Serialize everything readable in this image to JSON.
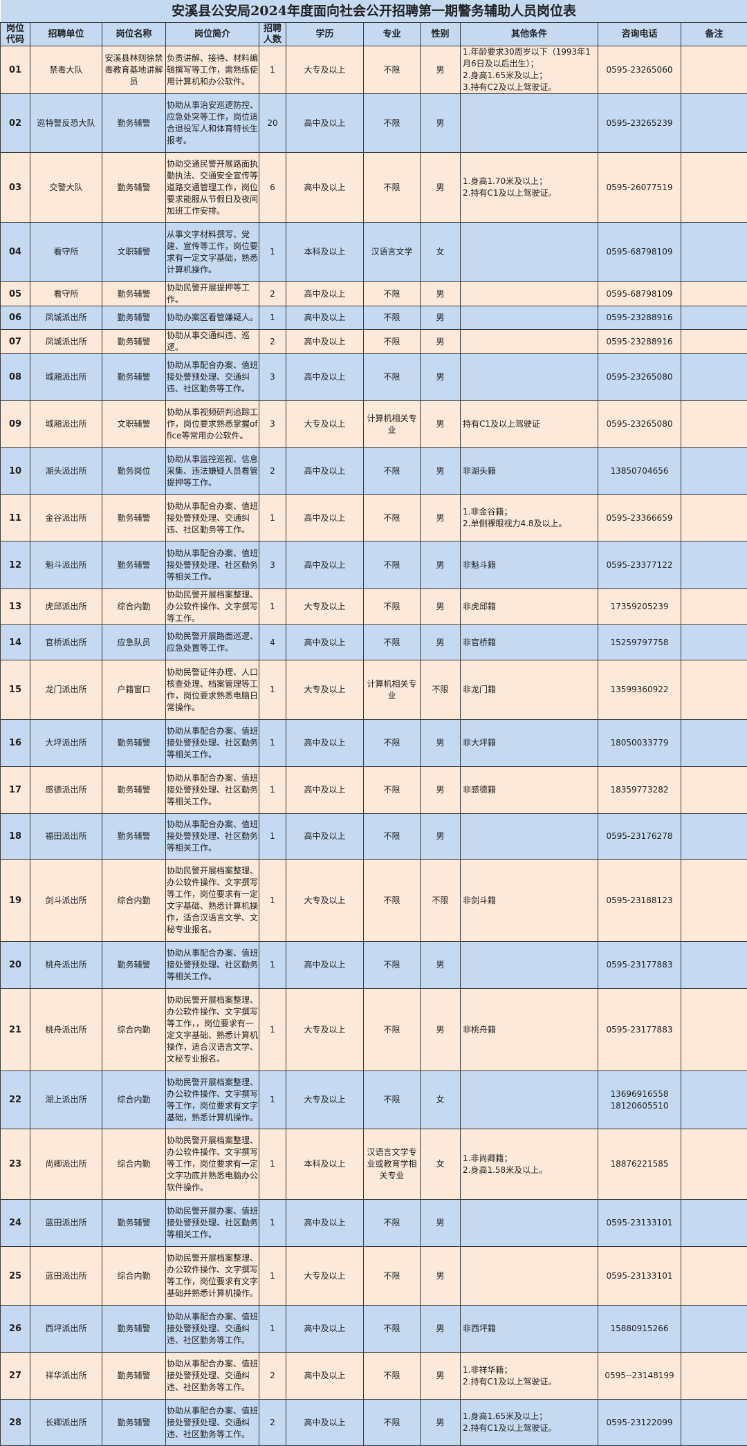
{
  "title": "安溪县公安局2024年度面向社会公开招聘第一期警务辅助人员岗位表",
  "headers": [
    "岗位代码",
    "招聘单位",
    "岗位名称",
    "岗位简介",
    "招聘人数",
    "学历",
    "专业",
    "性别",
    "其他条件",
    "咨询电话",
    "备注"
  ],
  "colors": {
    "header_bg": "#c5d9f1",
    "row_odd": "#fde9d9",
    "row_even": "#c5d9f1"
  },
  "rows": [
    {
      "code": "01",
      "unit": "禁毒大队",
      "post": "安溪县林则徐禁毒教育基地讲解员",
      "intro": "负责讲解、接待、材料编辑撰写等工作，需熟练使用计算机和办公软件。",
      "count": "1",
      "edu": "大专及以上",
      "major": "不限",
      "gender": "男",
      "other": "1.年龄要求30周岁以下（1993年1月6日及以后出生）；\n2.身高1.65米及以上；\n3.持有C2及以上驾驶证。",
      "phone": "0595-23265060",
      "note": ""
    },
    {
      "code": "02",
      "unit": "巡特警反恐大队",
      "post": "勤务辅警",
      "intro": "协助从事治安巡逻防控、应急处突等工作，岗位适合退役军人和体育特长生报考。",
      "count": "20",
      "edu": "高中及以上",
      "major": "不限",
      "gender": "男",
      "other": "",
      "phone": "0595-23265239",
      "note": ""
    },
    {
      "code": "03",
      "unit": "交警大队",
      "post": "勤务辅警",
      "intro": "协助交通民警开展路面执勤执法、交通安全宣传等道路交通管理工作，岗位要求能服从节假日及夜间加班工作安排。",
      "count": "6",
      "edu": "高中及以上",
      "major": "不限",
      "gender": "男",
      "other": "1.身高1.70米及以上；\n2.持有C1及以上驾驶证。",
      "phone": "0595-26077519",
      "note": ""
    },
    {
      "code": "04",
      "unit": "看守所",
      "post": "文职辅警",
      "intro": "从事文字材料撰写、党建、宣传等工作，岗位要求有一定文字基础，熟悉计算机操作。",
      "count": "1",
      "edu": "本科及以上",
      "major": "汉语言文学",
      "gender": "女",
      "other": "",
      "phone": "0595-68798109",
      "note": ""
    },
    {
      "code": "05",
      "unit": "看守所",
      "post": "勤务辅警",
      "intro": "协助民警开展提押等工作。",
      "count": "2",
      "edu": "高中及以上",
      "major": "不限",
      "gender": "男",
      "other": "",
      "phone": "0595-68798109",
      "note": ""
    },
    {
      "code": "06",
      "unit": "凤城派出所",
      "post": "勤务辅警",
      "intro": "协助办案区看管嫌疑人。",
      "count": "1",
      "edu": "高中及以上",
      "major": "不限",
      "gender": "男",
      "other": "",
      "phone": "0595-23288916",
      "note": ""
    },
    {
      "code": "07",
      "unit": "凤城派出所",
      "post": "勤务辅警",
      "intro": "协助从事交通纠违、巡逻。",
      "count": "2",
      "edu": "高中及以上",
      "major": "不限",
      "gender": "男",
      "other": "",
      "phone": "0595-23288916",
      "note": ""
    },
    {
      "code": "08",
      "unit": "城厢派出所",
      "post": "勤务辅警",
      "intro": "协助从事配合办案、值班接处警预处理、交通纠违、社区勤务等工作。",
      "count": "3",
      "edu": "高中及以上",
      "major": "不限",
      "gender": "男",
      "other": "",
      "phone": "0595-23265080",
      "note": ""
    },
    {
      "code": "09",
      "unit": "城厢派出所",
      "post": "文职辅警",
      "intro": "协助从事视频研判追踪工作，岗位要求熟悉掌握office等常用办公软件。",
      "count": "3",
      "edu": "大专及以上",
      "major": "计算机相关专业",
      "gender": "男",
      "other": "持有C1及以上驾驶证",
      "phone": "0595-23265080",
      "note": ""
    },
    {
      "code": "10",
      "unit": "湖头派出所",
      "post": "勤务岗位",
      "intro": "协助从事监控巡视、信息采集、违法嫌疑人员看管提押等工作。",
      "count": "2",
      "edu": "高中及以上",
      "major": "不限",
      "gender": "男",
      "other": "非湖头籍",
      "phone": "13850704656",
      "note": ""
    },
    {
      "code": "11",
      "unit": "金谷派出所",
      "post": "勤务辅警",
      "intro": "协助从事配合办案、值班接处警预处理、交通纠违、社区勤务等工作。",
      "count": "1",
      "edu": "高中及以上",
      "major": "不限",
      "gender": "男",
      "other": "1.非金谷籍；\n2.单侧裸眼视力4.8及以上。",
      "phone": "0595-23366659",
      "note": ""
    },
    {
      "code": "12",
      "unit": "魁斗派出所",
      "post": "勤务辅警",
      "intro": "协助从事配合办案、值班接处警预处理、社区勤务等相关工作。",
      "count": "3",
      "edu": "高中及以上",
      "major": "不限",
      "gender": "男",
      "other": "非魁斗籍",
      "phone": "0595-23377122",
      "note": ""
    },
    {
      "code": "13",
      "unit": "虎邱派出所",
      "post": "综合内勤",
      "intro": "协助民警开展档案整理、办公软件操作、文字撰写等工作。",
      "count": "1",
      "edu": "大专及以上",
      "major": "不限",
      "gender": "男",
      "other": "非虎邱籍",
      "phone": "17359205239",
      "note": ""
    },
    {
      "code": "14",
      "unit": "官桥派出所",
      "post": "应急队员",
      "intro": "协助民警开展路面巡逻、应急处置等工作。",
      "count": "4",
      "edu": "高中及以上",
      "major": "不限",
      "gender": "男",
      "other": "非官桥籍",
      "phone": "15259797758",
      "note": ""
    },
    {
      "code": "15",
      "unit": "龙门派出所",
      "post": "户籍窗口",
      "intro": "协助民警证件办理、人口核查处理、档案管理等工作，岗位要求熟悉电脑日常操作。",
      "count": "1",
      "edu": "大专及以上",
      "major": "计算机相关专业",
      "gender": "不限",
      "other": "非龙门籍",
      "phone": "13599360922",
      "note": ""
    },
    {
      "code": "16",
      "unit": "大坪派出所",
      "post": "勤务辅警",
      "intro": "协助从事配合办案、值班接处警预处理、社区勤务等相关工作。",
      "count": "1",
      "edu": "高中及以上",
      "major": "不限",
      "gender": "男",
      "other": "非大坪籍",
      "phone": "18050033779",
      "note": ""
    },
    {
      "code": "17",
      "unit": "感德派出所",
      "post": "勤务辅警",
      "intro": "协助从事配合办案、值班接处警预处理、社区勤务等相关工作。",
      "count": "1",
      "edu": "高中及以上",
      "major": "不限",
      "gender": "男",
      "other": "非感德籍",
      "phone": "18359773282",
      "note": ""
    },
    {
      "code": "18",
      "unit": "福田派出所",
      "post": "勤务辅警",
      "intro": "协助从事配合办案、值班接处警预处理、社区勤务等相关工作。",
      "count": "1",
      "edu": "高中及以上",
      "major": "不限",
      "gender": "男",
      "other": "",
      "phone": "0595-23176278",
      "note": ""
    },
    {
      "code": "19",
      "unit": "剑斗派出所",
      "post": "综合内勤",
      "intro": "协助民警开展档案整理、办公软件操作、文字撰写等工作，岗位要求有一定文字基础、熟悉计算机操作，适合汉语言文学、文秘专业报名。",
      "count": "1",
      "edu": "大专及以上",
      "major": "不限",
      "gender": "不限",
      "other": "非剑斗籍",
      "phone": "0595-23188123",
      "note": ""
    },
    {
      "code": "20",
      "unit": "桃舟派出所",
      "post": "勤务辅警",
      "intro": "协助从事配合办案、值班接处警预处理、社区勤务等相关工作。",
      "count": "1",
      "edu": "高中及以上",
      "major": "不限",
      "gender": "男",
      "other": "",
      "phone": "0595-23177883",
      "note": ""
    },
    {
      "code": "21",
      "unit": "桃舟派出所",
      "post": "综合内勤",
      "intro": "协助民警开展档案整理、办公软件操作、文字撰写等工作，，岗位要求有一定文字基础、熟悉计算机操作，适合汉语言文学、文秘专业报名。",
      "count": "1",
      "edu": "大专及以上",
      "major": "不限",
      "gender": "男",
      "other": "非桃舟籍",
      "phone": "0595-23177883",
      "note": ""
    },
    {
      "code": "22",
      "unit": "湖上派出所",
      "post": "综合内勤",
      "intro": "协助民警开展档案整理、办公软件操作、文字撰写等工作，岗位要求有文字基础，熟悉计算机操作。",
      "count": "1",
      "edu": "大专及以上",
      "major": "不限",
      "gender": "女",
      "other": "",
      "phone": "13696916558\n18120605510",
      "note": ""
    },
    {
      "code": "23",
      "unit": "尚卿派出所",
      "post": "综合内勤",
      "intro": "协助民警开展档案整理、办公软件操作、文字撰写等工作，岗位要求有一定文字功底并熟悉电脑办公软件操作。",
      "count": "1",
      "edu": "本科及以上",
      "major": "汉语言文学专业或教育学相关专业",
      "gender": "女",
      "other": "1.非尚卿籍；\n2.身高1.58米及以上。",
      "phone": "18876221585",
      "note": ""
    },
    {
      "code": "24",
      "unit": "蓝田派出所",
      "post": "勤务辅警",
      "intro": "协助民警开展办案、值班接处警预处理、社区勤务等相关工作。",
      "count": "1",
      "edu": "高中及以上",
      "major": "不限",
      "gender": "男",
      "other": "",
      "phone": "0595-23133101",
      "note": ""
    },
    {
      "code": "25",
      "unit": "蓝田派出所",
      "post": "综合内勤",
      "intro": "协助民警开展档案整理、办公软件操作、文字撰写等工作，岗位要求有文字基础并熟悉计算机操作。",
      "count": "1",
      "edu": "大专及以上",
      "major": "不限",
      "gender": "男",
      "other": "",
      "phone": "0595-23133101",
      "note": ""
    },
    {
      "code": "26",
      "unit": "西坪派出所",
      "post": "勤务辅警",
      "intro": "协助从事配合办案、值班接处警预处理、交通纠违、社区勤务等工作。",
      "count": "1",
      "edu": "高中及以上",
      "major": "不限",
      "gender": "男",
      "other": "非西坪籍",
      "phone": "15880915266",
      "note": ""
    },
    {
      "code": "27",
      "unit": "祥华派出所",
      "post": "勤务辅警",
      "intro": "协助从事配合办案、值班接处警预处理、交通纠违、社区勤务等工作。",
      "count": "2",
      "edu": "高中及以上",
      "major": "不限",
      "gender": "男",
      "other": "1.非祥华籍；\n2.持有C1及以上驾驶证。",
      "phone": "0595--23148199",
      "note": ""
    },
    {
      "code": "28",
      "unit": "长卿派出所",
      "post": "勤务辅警",
      "intro": "协助从事配合办案、值班接处警预处理、交通纠违、社区勤务等工作。",
      "count": "2",
      "edu": "高中及以上",
      "major": "不限",
      "gender": "男",
      "other": "1.身高1.65米及以上；\n2.持有C1及以上驾驶证。",
      "phone": "0595-23122099",
      "note": ""
    }
  ]
}
